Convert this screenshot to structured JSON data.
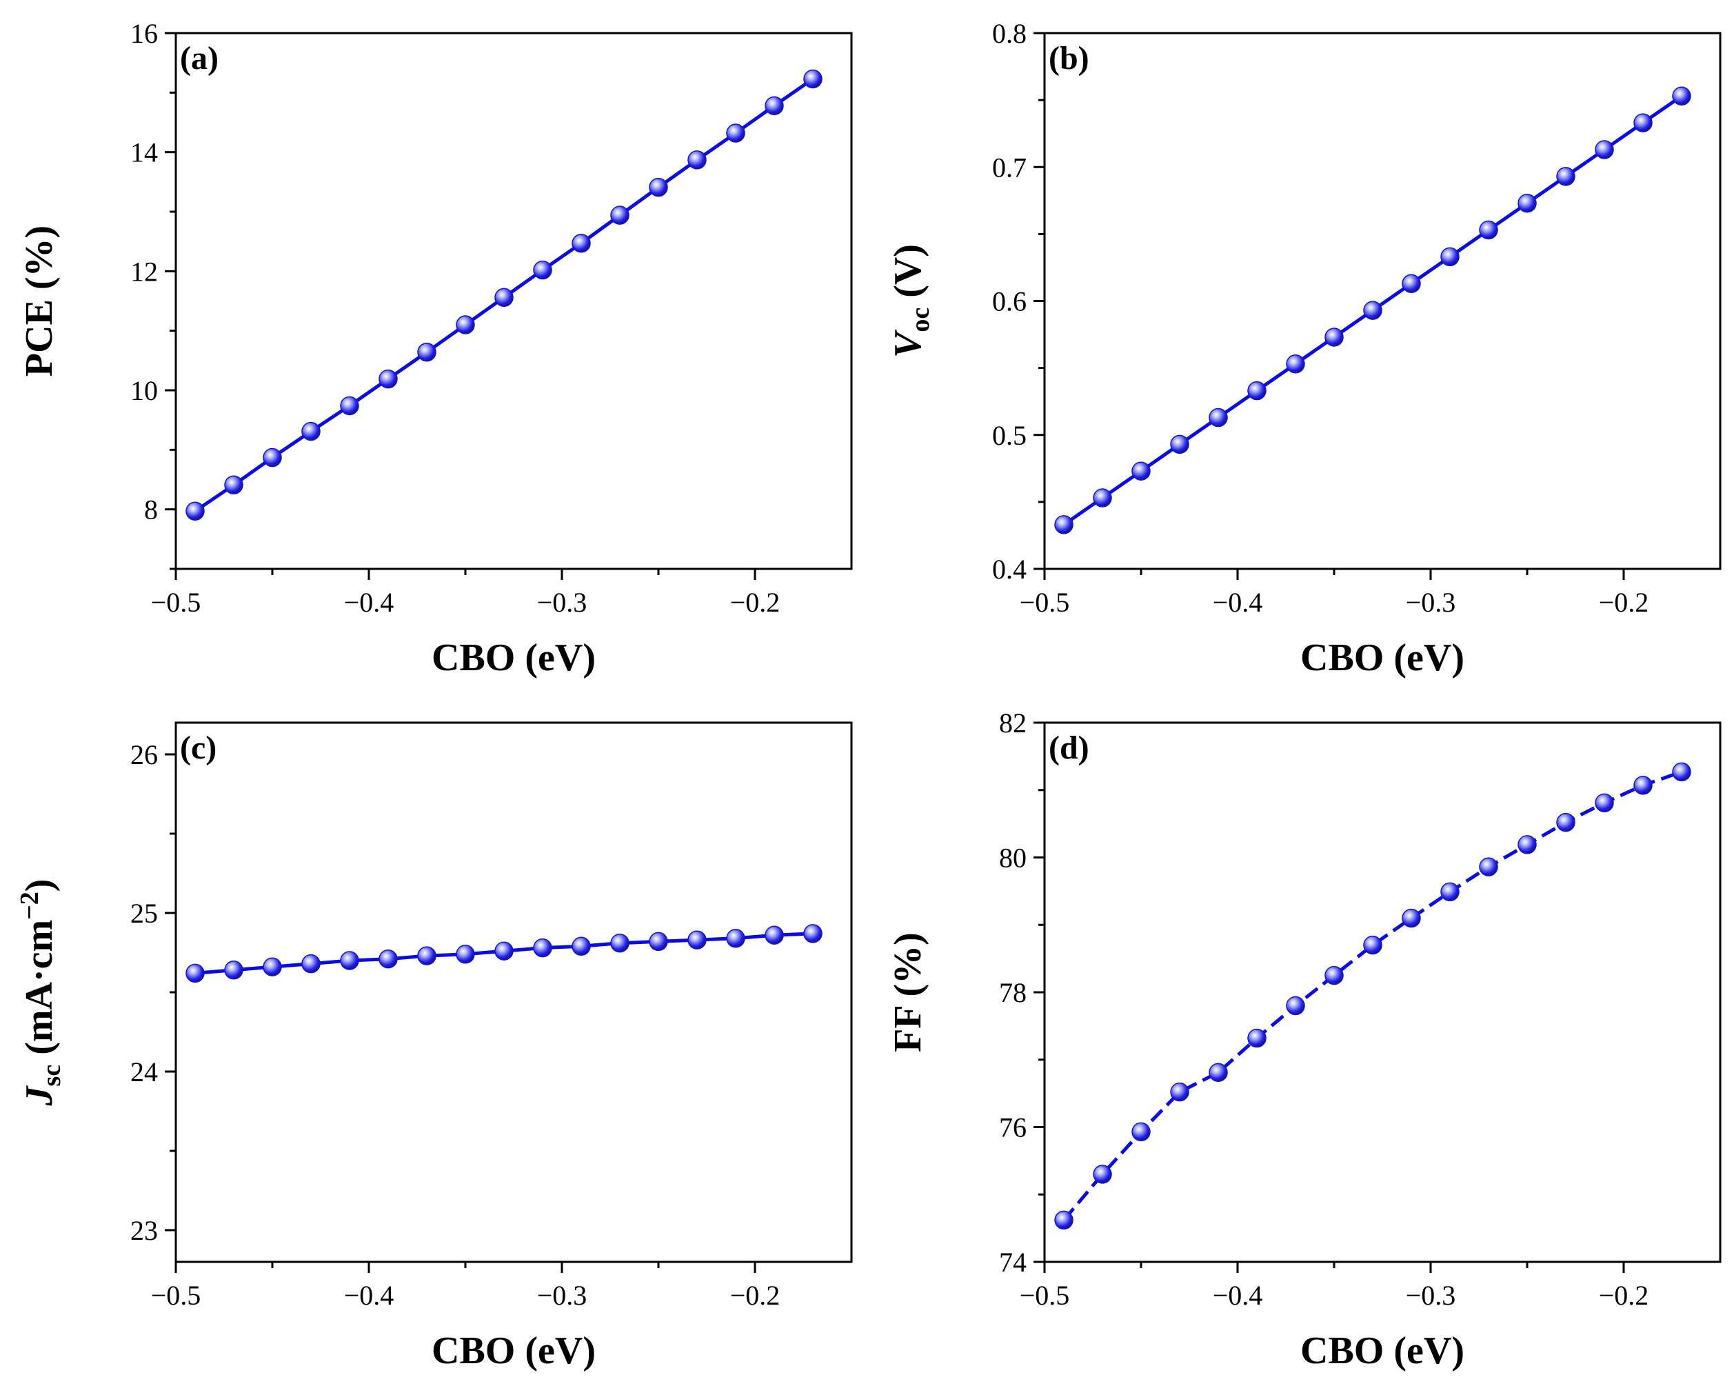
{
  "colors": {
    "series": "#0a0ae6",
    "marker_light": "#cfd3ff",
    "marker_dark": "#1414c8"
  },
  "chart_data": [
    {
      "id": "a",
      "type": "line",
      "panel_label": "(a)",
      "xlabel": "CBO (eV)",
      "ylabel": "PCE (%)",
      "xlim": [
        -0.5,
        -0.15
      ],
      "ylim": [
        7,
        16
      ],
      "xticks": [
        -0.5,
        -0.4,
        -0.3,
        -0.2
      ],
      "xtick_labels": [
        "−0.5",
        "−0.4",
        "−0.3",
        "−0.2"
      ],
      "yticks": [
        8,
        10,
        12,
        14,
        16
      ],
      "ytick_labels": [
        "8",
        "10",
        "12",
        "14",
        "16"
      ],
      "line_style": "solid",
      "series": [
        {
          "name": "PCE",
          "x": [
            -0.49,
            -0.47,
            -0.45,
            -0.43,
            -0.41,
            -0.39,
            -0.37,
            -0.35,
            -0.33,
            -0.31,
            -0.29,
            -0.27,
            -0.25,
            -0.23,
            -0.21,
            -0.19,
            -0.17
          ],
          "y": [
            7.97,
            8.41,
            8.87,
            9.31,
            9.74,
            10.19,
            10.64,
            11.1,
            11.56,
            12.02,
            12.47,
            12.94,
            13.41,
            13.87,
            14.32,
            14.78,
            15.23
          ]
        }
      ]
    },
    {
      "id": "b",
      "type": "line",
      "panel_label": "(b)",
      "xlabel": "CBO (eV)",
      "ylabel_main": "V",
      "ylabel_sub": "oc",
      "ylabel_unit": " (V)",
      "xlim": [
        -0.5,
        -0.15
      ],
      "ylim": [
        0.4,
        0.8
      ],
      "xticks": [
        -0.5,
        -0.4,
        -0.3,
        -0.2
      ],
      "xtick_labels": [
        "−0.5",
        "−0.4",
        "−0.3",
        "−0.2"
      ],
      "yticks": [
        0.4,
        0.5,
        0.6,
        0.7,
        0.8
      ],
      "ytick_labels": [
        "0.4",
        "0.5",
        "0.6",
        "0.7",
        "0.8"
      ],
      "line_style": "solid",
      "series": [
        {
          "name": "Voc",
          "x": [
            -0.49,
            -0.47,
            -0.45,
            -0.43,
            -0.41,
            -0.39,
            -0.37,
            -0.35,
            -0.33,
            -0.31,
            -0.29,
            -0.27,
            -0.25,
            -0.23,
            -0.21,
            -0.19,
            -0.17
          ],
          "y": [
            0.433,
            0.453,
            0.473,
            0.493,
            0.513,
            0.533,
            0.553,
            0.573,
            0.593,
            0.613,
            0.633,
            0.653,
            0.673,
            0.693,
            0.713,
            0.733,
            0.753
          ]
        }
      ]
    },
    {
      "id": "c",
      "type": "line",
      "panel_label": "(c)",
      "xlabel": "CBO (eV)",
      "ylabel_main": "J",
      "ylabel_sub": "sc",
      "ylabel_unit": " (mA·cm",
      "ylabel_sup": "−2",
      "ylabel_close": ")",
      "xlim": [
        -0.5,
        -0.15
      ],
      "ylim": [
        22.8,
        26.2
      ],
      "xticks": [
        -0.5,
        -0.4,
        -0.3,
        -0.2
      ],
      "xtick_labels": [
        "−0.5",
        "−0.4",
        "−0.3",
        "−0.2"
      ],
      "yticks": [
        23,
        24,
        25,
        26
      ],
      "ytick_labels": [
        "23",
        "24",
        "25",
        "26"
      ],
      "line_style": "solid",
      "series": [
        {
          "name": "Jsc",
          "x": [
            -0.49,
            -0.47,
            -0.45,
            -0.43,
            -0.41,
            -0.39,
            -0.37,
            -0.35,
            -0.33,
            -0.31,
            -0.29,
            -0.27,
            -0.25,
            -0.23,
            -0.21,
            -0.19,
            -0.17
          ],
          "y": [
            24.62,
            24.64,
            24.66,
            24.68,
            24.7,
            24.71,
            24.73,
            24.74,
            24.76,
            24.78,
            24.79,
            24.81,
            24.82,
            24.83,
            24.84,
            24.86,
            24.87
          ]
        }
      ]
    },
    {
      "id": "d",
      "type": "line",
      "panel_label": "(d)",
      "xlabel": "CBO (eV)",
      "ylabel": "FF (%)",
      "xlim": [
        -0.5,
        -0.15
      ],
      "ylim": [
        74,
        82
      ],
      "xticks": [
        -0.5,
        -0.4,
        -0.3,
        -0.2
      ],
      "xtick_labels": [
        "−0.5",
        "−0.4",
        "−0.3",
        "−0.2"
      ],
      "yticks": [
        74,
        76,
        78,
        80,
        82
      ],
      "ytick_labels": [
        "74",
        "76",
        "78",
        "80",
        "82"
      ],
      "line_style": "dashed",
      "series": [
        {
          "name": "FF",
          "x": [
            -0.49,
            -0.47,
            -0.45,
            -0.43,
            -0.41,
            -0.39,
            -0.37,
            -0.35,
            -0.33,
            -0.31,
            -0.29,
            -0.27,
            -0.25,
            -0.23,
            -0.21,
            -0.19,
            -0.17
          ],
          "y": [
            74.62,
            75.3,
            75.93,
            76.52,
            76.81,
            77.32,
            77.8,
            78.25,
            78.7,
            79.1,
            79.49,
            79.86,
            80.19,
            80.52,
            80.81,
            81.07,
            81.27
          ]
        }
      ]
    }
  ]
}
